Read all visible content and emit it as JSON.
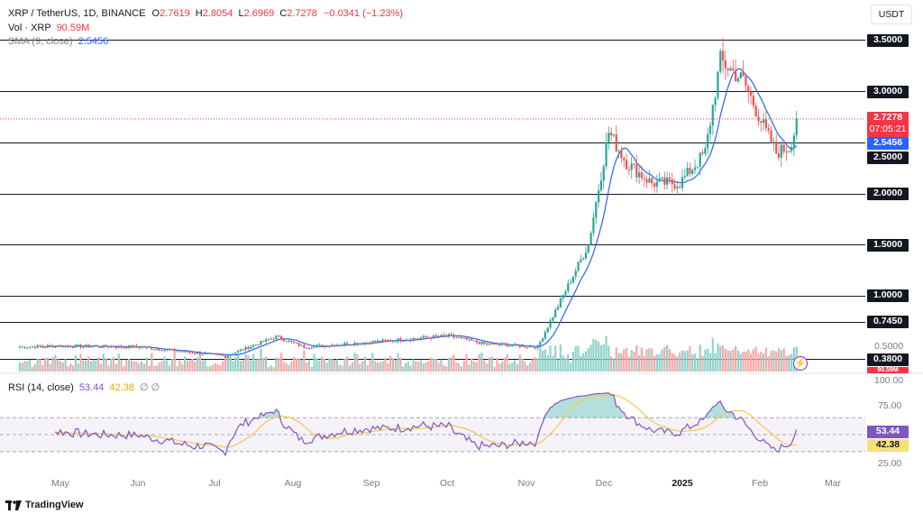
{
  "header": {
    "symbol": "XRP / TetherUS, 1D, BINANCE",
    "o_label": "O",
    "o_value": "2.7619",
    "h_label": "H",
    "h_value": "2.8054",
    "l_label": "L",
    "l_value": "2.6969",
    "c_label": "C",
    "c_value": "2.7278",
    "change": "−0.0341 (−1.23%)",
    "vol_label": "Vol · XRP",
    "vol_value": "90.59M",
    "sma_label": "SMA (9, close)",
    "sma_value": "2.5456"
  },
  "currency_button": "USDT",
  "price_axis": {
    "levels": [
      "3.5000",
      "3.0000",
      "2.5000",
      "2.0000",
      "1.5000",
      "1.0000",
      "0.7450",
      "0.5000",
      "0.3800"
    ],
    "last_price": "2.7278",
    "countdown": "07:05:21",
    "sma_tag": "2.5456",
    "vol_tag": "90.59M"
  },
  "rsi": {
    "label": "RSI (14, close)",
    "rsi_value": "53.44",
    "ma_value": "42.38",
    "extra": "∅ ∅",
    "levels": [
      "100.00",
      "75.00",
      "25.00"
    ]
  },
  "time_axis": [
    "May",
    "Jun",
    "Jul",
    "Aug",
    "Sep",
    "Oct",
    "Nov",
    "Dec",
    "2025",
    "Feb",
    "Mar"
  ],
  "footer": {
    "logo_text": "TradingView"
  },
  "colors": {
    "up": "#26a69a",
    "down": "#ef5350",
    "sma": "#2962ff",
    "rsi": "#7e57c2",
    "rsi_ma": "#f7c948"
  },
  "chart_data": {
    "type": "candlestick",
    "title": "XRP / TetherUS, 1D, BINANCE",
    "ylim": [
      0.38,
      3.55
    ],
    "horizontal_levels": [
      3.5,
      3.0,
      2.5,
      2.0,
      1.5,
      1.0,
      0.745,
      0.38
    ],
    "close_path": [
      {
        "x": "2024-04-15",
        "y": 0.5
      },
      {
        "x": "2024-05-01",
        "y": 0.51
      },
      {
        "x": "2024-06-01",
        "y": 0.5
      },
      {
        "x": "2024-07-05",
        "y": 0.41
      },
      {
        "x": "2024-07-25",
        "y": 0.6
      },
      {
        "x": "2024-08-05",
        "y": 0.5
      },
      {
        "x": "2024-09-01",
        "y": 0.55
      },
      {
        "x": "2024-10-01",
        "y": 0.61
      },
      {
        "x": "2024-10-15",
        "y": 0.53
      },
      {
        "x": "2024-11-05",
        "y": 0.5
      },
      {
        "x": "2024-11-15",
        "y": 1.0
      },
      {
        "x": "2024-11-25",
        "y": 1.5
      },
      {
        "x": "2024-12-03",
        "y": 2.6
      },
      {
        "x": "2024-12-10",
        "y": 2.3
      },
      {
        "x": "2024-12-20",
        "y": 2.1
      },
      {
        "x": "2024-12-31",
        "y": 2.1
      },
      {
        "x": "2025-01-10",
        "y": 2.4
      },
      {
        "x": "2025-01-16",
        "y": 3.3
      },
      {
        "x": "2025-01-25",
        "y": 3.1
      },
      {
        "x": "2025-02-03",
        "y": 2.6
      },
      {
        "x": "2025-02-07",
        "y": 2.4
      },
      {
        "x": "2025-02-12",
        "y": 2.45
      },
      {
        "x": "2025-02-16",
        "y": 2.73
      }
    ],
    "sma": {
      "name": "SMA (9, close)",
      "last": 2.5456
    },
    "rsi": {
      "name": "RSI (14, close)",
      "last": 53.44,
      "ma_last": 42.38,
      "levels": [
        70,
        50,
        30
      ]
    }
  }
}
